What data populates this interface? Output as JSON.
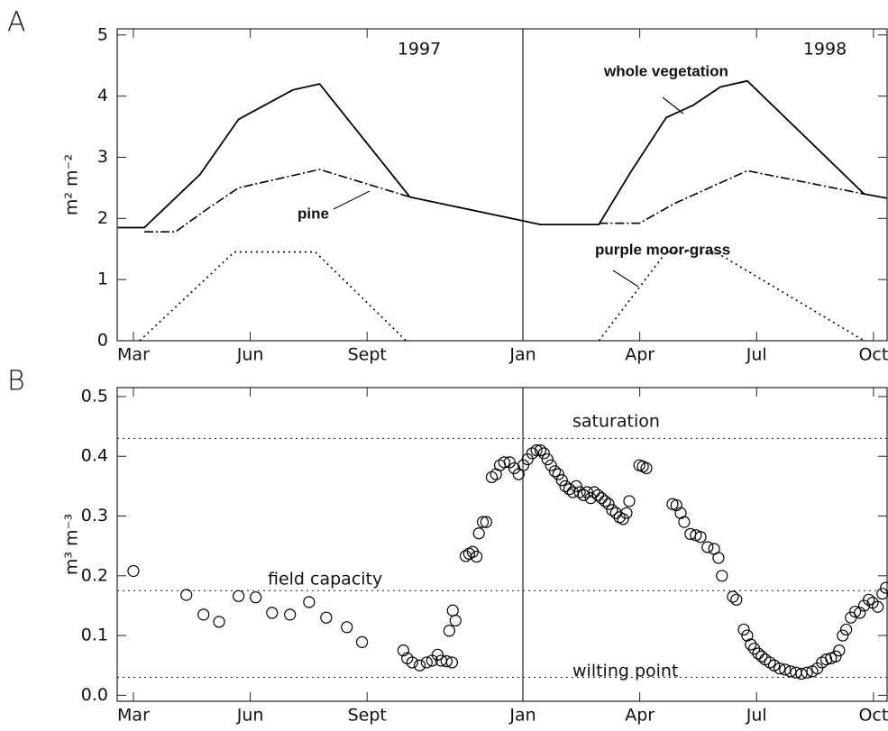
{
  "chart_data": [
    {
      "type": "line",
      "panel": "A",
      "ylabel": "m² m⁻²",
      "xlim": [
        1.584,
        21.35
      ],
      "ylim": [
        0,
        5.1
      ],
      "xticks": [
        {
          "value": 2,
          "label": "Mar"
        },
        {
          "value": 5,
          "label": "Jun"
        },
        {
          "value": 8,
          "label": "Sept"
        },
        {
          "value": 12,
          "label": "Jan"
        },
        {
          "value": 15,
          "label": "Apr"
        },
        {
          "value": 18,
          "label": "Jul"
        },
        {
          "value": 21,
          "label": "Oct"
        }
      ],
      "yticks": [
        0,
        1,
        2,
        3,
        4,
        5
      ],
      "vline_x": 12,
      "annotations": [
        "1997",
        "1998"
      ],
      "series": [
        {
          "name": "whole vegetation",
          "color": "#000000",
          "style": "solid",
          "x": [
            1.6,
            2.28,
            3.71,
            4.7,
            5.51,
            6.09,
            6.78,
            9.1,
            12.45,
            13.95,
            14.76,
            15.68,
            16.37,
            17.07,
            17.76,
            20.76,
            21.35
          ],
          "values": [
            1.85,
            1.85,
            2.72,
            3.62,
            3.9,
            4.1,
            4.2,
            2.35,
            1.9,
            1.9,
            2.75,
            3.65,
            3.85,
            4.15,
            4.25,
            2.4,
            2.33
          ]
        },
        {
          "name": "pine",
          "color": "#000000",
          "style": "dashdot",
          "x": [
            2.28,
            3.08,
            3.89,
            4.7,
            6.78,
            9.1,
            11.5,
            13.95,
            14.99,
            15.91,
            17.76,
            20.76
          ],
          "values": [
            1.78,
            1.78,
            2.15,
            2.5,
            2.8,
            2.35,
            null,
            1.92,
            1.92,
            2.25,
            2.78,
            2.4
          ]
        },
        {
          "name": "purple moor-grass",
          "color": "#000000",
          "style": "dotted",
          "x": [
            2.16,
            4.59,
            6.67,
            9.0,
            11.5,
            13.95,
            15.68,
            16.95,
            20.76
          ],
          "values": [
            0,
            1.45,
            1.45,
            0,
            null,
            0,
            1.45,
            1.45,
            0
          ]
        }
      ]
    },
    {
      "type": "scatter",
      "panel": "B",
      "ylabel": "m³ m⁻³",
      "xlim": [
        1.584,
        21.35
      ],
      "ylim": [
        -0.01,
        0.515
      ],
      "xticks": [
        {
          "value": 2,
          "label": "Mar"
        },
        {
          "value": 5,
          "label": "Jun"
        },
        {
          "value": 8,
          "label": "Sept"
        },
        {
          "value": 12,
          "label": "Jan"
        },
        {
          "value": 15,
          "label": "Apr"
        },
        {
          "value": 18,
          "label": "Jul"
        },
        {
          "value": 21,
          "label": "Oct"
        }
      ],
      "yticks": [
        {
          "value": 0,
          "label": "0.0"
        },
        0.1,
        0.2,
        0.3,
        0.4,
        0.5
      ],
      "vline_x": 12,
      "reference_lines": [
        {
          "value": 0.43,
          "label": "saturation"
        },
        {
          "value": 0.175,
          "label": "field capacity"
        },
        {
          "value": 0.03,
          "label": "wilting point"
        }
      ],
      "series": [
        {
          "color": "#000000",
          "x": [
            2.0,
            3.36,
            3.8,
            4.2,
            4.7,
            5.14,
            5.56,
            6.02,
            6.51,
            6.95,
            7.48,
            7.87,
            8.93,
            9.03,
            9.16,
            9.35,
            9.53,
            9.67,
            9.81,
            9.9,
            10.04,
            10.18,
            10.11,
            10.2,
            10.27,
            10.53,
            10.62,
            10.71,
            10.81,
            10.87,
            10.97,
            11.06,
            11.2,
            11.31,
            11.41,
            11.52,
            11.66,
            11.78,
            11.89,
            12.01,
            12.12,
            12.24,
            12.35,
            12.45,
            12.54,
            12.63,
            12.72,
            12.82,
            12.91,
            13.0,
            13.09,
            13.19,
            13.28,
            13.37,
            13.46,
            13.56,
            13.65,
            13.74,
            13.83,
            13.93,
            14.02,
            14.11,
            14.2,
            14.29,
            14.39,
            14.48,
            14.57,
            14.66,
            14.73,
            14.99,
            15.08,
            15.17,
            15.84,
            15.94,
            16.05,
            16.14,
            16.3,
            16.44,
            16.56,
            16.74,
            16.91,
            17.02,
            17.11,
            17.39,
            17.48,
            17.67,
            17.76,
            17.85,
            17.94,
            18.04,
            18.13,
            18.22,
            18.34,
            18.45,
            18.59,
            18.73,
            18.87,
            19.01,
            19.15,
            19.29,
            19.43,
            19.56,
            19.68,
            19.79,
            19.91,
            20.03,
            20.12,
            20.21,
            20.3,
            20.42,
            20.53,
            20.65,
            20.76,
            20.88,
            20.98,
            21.11,
            21.23,
            21.32
          ],
          "values": [
            0.208,
            0.168,
            0.135,
            0.123,
            0.166,
            0.164,
            0.138,
            0.135,
            0.156,
            0.13,
            0.114,
            0.089,
            0.075,
            0.062,
            0.055,
            0.05,
            0.055,
            0.058,
            0.068,
            0.058,
            0.057,
            0.055,
            0.108,
            0.142,
            0.125,
            0.233,
            0.237,
            0.24,
            0.232,
            0.271,
            0.29,
            0.29,
            0.365,
            0.37,
            0.385,
            0.39,
            0.39,
            0.38,
            0.37,
            0.385,
            0.395,
            0.405,
            0.41,
            0.41,
            0.405,
            0.395,
            0.385,
            0.375,
            0.37,
            0.36,
            0.35,
            0.345,
            0.34,
            0.35,
            0.34,
            0.335,
            0.34,
            0.33,
            0.34,
            0.335,
            0.33,
            0.325,
            0.32,
            0.31,
            0.305,
            0.298,
            0.295,
            0.305,
            0.325,
            0.385,
            0.383,
            0.38,
            0.32,
            0.318,
            0.305,
            0.29,
            0.27,
            0.268,
            0.265,
            0.248,
            0.245,
            0.23,
            0.2,
            0.165,
            0.16,
            0.11,
            0.1,
            0.085,
            0.078,
            0.07,
            0.065,
            0.06,
            0.055,
            0.05,
            0.045,
            0.043,
            0.04,
            0.038,
            0.036,
            0.038,
            0.04,
            0.045,
            0.055,
            0.06,
            0.062,
            0.065,
            0.075,
            0.1,
            0.11,
            0.13,
            0.14,
            0.138,
            0.15,
            0.16,
            0.155,
            0.148,
            0.17,
            0.18
          ]
        }
      ]
    }
  ]
}
